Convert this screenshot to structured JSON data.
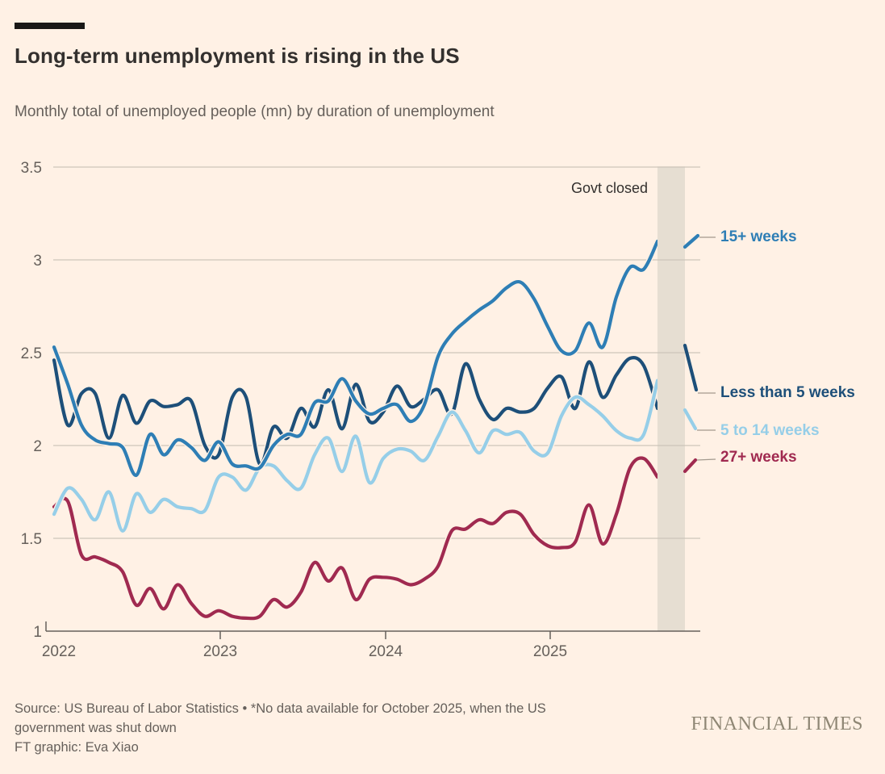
{
  "header": {
    "title": "Long-term unemployment is rising in the US",
    "subtitle": "Monthly total of unemployed people (mn) by duration of unemployment"
  },
  "annotation": {
    "govt_closed": "Govt closed"
  },
  "footer": {
    "source": "Source: US Bureau of Labor Statistics • *No data available for October 2025, when the US government was shut down",
    "credit": "FT graphic: Eva Xiao",
    "logo": "FINANCIAL TIMES"
  },
  "chart_data": {
    "type": "line",
    "title": "Long-term unemployment is rising in the US",
    "subtitle": "Monthly total of unemployed people (mn) by duration of unemployment",
    "x_start": "2022-01",
    "x_frequency": "monthly",
    "x_axis_tick_labels": [
      "2022",
      "2023",
      "2024",
      "2025"
    ],
    "y_axis": {
      "min": 1,
      "max": 3.5,
      "ticks": [
        3.5,
        3,
        2.5,
        2,
        1.5,
        1
      ],
      "unit": "mn people"
    },
    "grid": "horizontal",
    "no_data_gap": {
      "month": "2025-10",
      "label": "Govt closed",
      "reason": "No data available for October 2025, when the US government was shut down"
    },
    "series": [
      {
        "name": "15+ weeks",
        "color": "#2e7eb5",
        "months_jan2022_to_sep2025": [
          2.53,
          2.33,
          2.11,
          2.03,
          2.01,
          1.99,
          1.84,
          2.06,
          1.95,
          2.03,
          1.99,
          1.92,
          2.02,
          1.9,
          1.89,
          1.88,
          2.0,
          2.06,
          2.06,
          2.23,
          2.24,
          2.36,
          2.24,
          2.17,
          2.2,
          2.22,
          2.13,
          2.22,
          2.48,
          2.6,
          2.67,
          2.73,
          2.78,
          2.85,
          2.88,
          2.79,
          2.64,
          2.51,
          2.51,
          2.66,
          2.53,
          2.8,
          2.96,
          2.95,
          3.1
        ],
        "nov_2025": 3.12
      },
      {
        "name": "Less than 5 weeks",
        "color": "#1d4f79",
        "months_jan2022_to_sep2025": [
          2.46,
          2.11,
          2.28,
          2.28,
          2.04,
          2.27,
          2.12,
          2.24,
          2.21,
          2.22,
          2.24,
          2.0,
          1.95,
          2.26,
          2.26,
          1.9,
          2.1,
          2.04,
          2.2,
          2.1,
          2.3,
          2.09,
          2.33,
          2.13,
          2.18,
          2.32,
          2.21,
          2.25,
          2.3,
          2.17,
          2.44,
          2.25,
          2.14,
          2.2,
          2.18,
          2.2,
          2.31,
          2.37,
          2.2,
          2.45,
          2.26,
          2.38,
          2.47,
          2.43,
          2.2
        ],
        "nov_2025": 2.3
      },
      {
        "name": "5 to 14 weeks",
        "color": "#96cee8",
        "months_jan2022_to_sep2025": [
          1.63,
          1.77,
          1.71,
          1.6,
          1.75,
          1.54,
          1.74,
          1.64,
          1.71,
          1.67,
          1.66,
          1.65,
          1.83,
          1.83,
          1.76,
          1.88,
          1.89,
          1.81,
          1.77,
          1.95,
          2.04,
          1.86,
          2.05,
          1.8,
          1.93,
          1.98,
          1.97,
          1.92,
          2.05,
          2.18,
          2.08,
          1.96,
          2.08,
          2.06,
          2.07,
          1.97,
          1.96,
          2.16,
          2.26,
          2.22,
          2.16,
          2.08,
          2.04,
          2.06,
          2.35
        ],
        "nov_2025": 2.04
      },
      {
        "name": "27+ weeks",
        "color": "#a02a50",
        "months_jan2022_to_sep2025": [
          1.67,
          1.7,
          1.41,
          1.4,
          1.37,
          1.32,
          1.14,
          1.23,
          1.12,
          1.25,
          1.15,
          1.08,
          1.11,
          1.08,
          1.07,
          1.08,
          1.17,
          1.13,
          1.21,
          1.37,
          1.27,
          1.34,
          1.17,
          1.28,
          1.29,
          1.28,
          1.25,
          1.28,
          1.35,
          1.54,
          1.55,
          1.6,
          1.58,
          1.64,
          1.63,
          1.52,
          1.46,
          1.45,
          1.48,
          1.68,
          1.47,
          1.63,
          1.88,
          1.93,
          1.83
        ],
        "nov_2025": 1.88
      }
    ]
  },
  "colors": {
    "background": "#fff1e5",
    "grid": "#cdc5ba",
    "axis": "#66605b",
    "text_dark": "#33302e",
    "text_muted": "#66605b",
    "band": "#e6ded2",
    "leader": "#a39a8e",
    "logo": "#8f8775",
    "top_bar": "#1a1817"
  }
}
